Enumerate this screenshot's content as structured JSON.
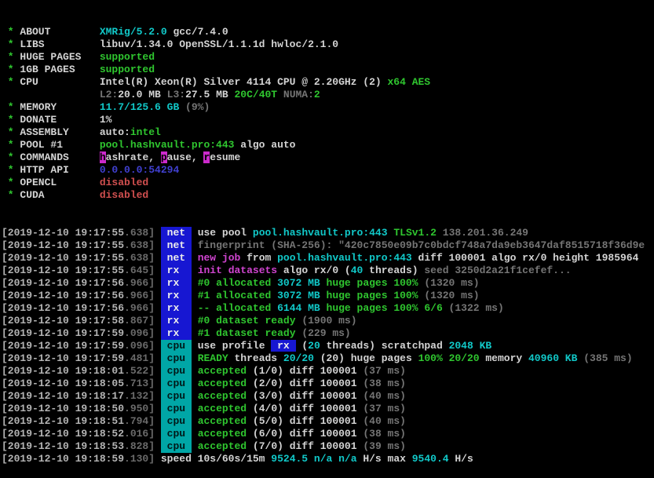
{
  "colors": {
    "background": "#000000",
    "text": "#d4d4d4",
    "green": "#2fc62f",
    "cyan": "#11c9c9",
    "magenta": "#d044d0",
    "red": "#d04f4f",
    "blue": "#4040d0",
    "dim": "#757575",
    "timestamp": "#b4b4b4",
    "timestamp_dim": "#6b6b6b",
    "net_rx_badge_bg": "#1717d2",
    "cpu_badge_bg": "#00a6a6",
    "hotkey_bg": "#cc2acc"
  },
  "terminal": {
    "header": [
      {
        "label": "ABOUT",
        "value": [
          {
            "t": "XMRig/5.2.0",
            "c": "c"
          },
          {
            "t": " gcc/7.4.0",
            "c": "w"
          }
        ]
      },
      {
        "label": "LIBS",
        "value": [
          {
            "t": "libuv/1.34.0 OpenSSL/1.1.1d hwloc/2.1.0",
            "c": "w"
          }
        ]
      },
      {
        "label": "HUGE PAGES",
        "value": [
          {
            "t": "supported",
            "c": "g"
          }
        ]
      },
      {
        "label": "1GB PAGES",
        "value": [
          {
            "t": "supported",
            "c": "g"
          }
        ]
      },
      {
        "label": "CPU",
        "value": [
          {
            "t": "Intel(R) Xeon(R) Silver 4114 CPU @ 2.20GHz (2) ",
            "c": "w"
          },
          {
            "t": "x64 AES",
            "c": "g"
          }
        ]
      },
      {
        "label": null,
        "value": [
          {
            "t": "L2:",
            "c": "d"
          },
          {
            "t": "20.0 MB",
            "c": "w"
          },
          {
            "t": " ",
            "c": "w"
          },
          {
            "t": "L3:",
            "c": "d"
          },
          {
            "t": "27.5 MB",
            "c": "w"
          },
          {
            "t": " ",
            "c": "w"
          },
          {
            "t": "20C/40T",
            "c": "g"
          },
          {
            "t": " ",
            "c": "w"
          },
          {
            "t": "NUMA:",
            "c": "d"
          },
          {
            "t": "2",
            "c": "g"
          }
        ]
      },
      {
        "label": "MEMORY",
        "value": [
          {
            "t": "11.7/125.6 GB ",
            "c": "c"
          },
          {
            "t": "(9%)",
            "c": "d"
          }
        ]
      },
      {
        "label": "DONATE",
        "value": [
          {
            "t": "1%",
            "c": "w"
          }
        ]
      },
      {
        "label": "ASSEMBLY",
        "value": [
          {
            "t": "auto:",
            "c": "w"
          },
          {
            "t": "intel",
            "c": "g"
          }
        ]
      },
      {
        "label": "POOL #1",
        "value": [
          {
            "t": "pool.hashvault.pro:443",
            "c": "g"
          },
          {
            "t": " algo auto",
            "c": "w"
          }
        ]
      },
      {
        "label": "COMMANDS",
        "value": [
          {
            "t": "h",
            "c": "hk"
          },
          {
            "t": "ashrate, ",
            "c": "w"
          },
          {
            "t": "p",
            "c": "hk"
          },
          {
            "t": "ause, ",
            "c": "w"
          },
          {
            "t": "r",
            "c": "hk"
          },
          {
            "t": "esume",
            "c": "w"
          }
        ]
      },
      {
        "label": "HTTP API",
        "value": [
          {
            "t": "0.0.0.0:54294",
            "c": "b"
          }
        ]
      },
      {
        "label": "OPENCL",
        "value": [
          {
            "t": "disabled",
            "c": "r"
          }
        ]
      },
      {
        "label": "CUDA",
        "value": [
          {
            "t": "disabled",
            "c": "r"
          }
        ]
      }
    ],
    "log": [
      {
        "ts": "2019-12-10 19:17:55",
        "ms": "638",
        "tag": "net",
        "msg": [
          {
            "t": "use pool ",
            "c": "w"
          },
          {
            "t": "pool.hashvault.pro:443 ",
            "c": "c"
          },
          {
            "t": "TLSv1.2 ",
            "c": "g"
          },
          {
            "t": "138.201.36.249",
            "c": "d"
          }
        ]
      },
      {
        "ts": "2019-12-10 19:17:55",
        "ms": "638",
        "tag": "net",
        "msg": [
          {
            "t": "fingerprint (SHA-256): \"420c7850e09b7c0bdcf748a7da9eb3647daf8515718f36d9e",
            "c": "d"
          }
        ]
      },
      {
        "ts": "2019-12-10 19:17:55",
        "ms": "638",
        "tag": "net",
        "msg": [
          {
            "t": "new job",
            "c": "m"
          },
          {
            "t": " from ",
            "c": "w"
          },
          {
            "t": "pool.hashvault.pro:443",
            "c": "c"
          },
          {
            "t": " diff 100001 algo rx/0 height 1985964",
            "c": "w"
          }
        ]
      },
      {
        "ts": "2019-12-10 19:17:55",
        "ms": "645",
        "tag": "rx",
        "msg": [
          {
            "t": "init datasets",
            "c": "m"
          },
          {
            "t": " algo rx/0 (",
            "c": "w"
          },
          {
            "t": "40",
            "c": "c"
          },
          {
            "t": " threads) ",
            "c": "w"
          },
          {
            "t": "seed 3250d2a21f1cefef...",
            "c": "d"
          }
        ]
      },
      {
        "ts": "2019-12-10 19:17:56",
        "ms": "966",
        "tag": "rx",
        "msg": [
          {
            "t": "#0 allocated ",
            "c": "g"
          },
          {
            "t": "3072 MB",
            "c": "c"
          },
          {
            "t": " huge pages 100% ",
            "c": "g"
          },
          {
            "t": "(1320 ms)",
            "c": "d"
          }
        ]
      },
      {
        "ts": "2019-12-10 19:17:56",
        "ms": "966",
        "tag": "rx",
        "msg": [
          {
            "t": "#1 allocated ",
            "c": "g"
          },
          {
            "t": "3072 MB",
            "c": "c"
          },
          {
            "t": " huge pages 100% ",
            "c": "g"
          },
          {
            "t": "(1320 ms)",
            "c": "d"
          }
        ]
      },
      {
        "ts": "2019-12-10 19:17:56",
        "ms": "966",
        "tag": "rx",
        "msg": [
          {
            "t": "-- allocated ",
            "c": "g"
          },
          {
            "t": "6144 MB",
            "c": "c"
          },
          {
            "t": " huge pages 100% 6/6 ",
            "c": "g"
          },
          {
            "t": "(1322 ms)",
            "c": "d"
          }
        ]
      },
      {
        "ts": "2019-12-10 19:17:58",
        "ms": "867",
        "tag": "rx",
        "msg": [
          {
            "t": "#0 dataset ready ",
            "c": "g"
          },
          {
            "t": "(1900 ms)",
            "c": "d"
          }
        ]
      },
      {
        "ts": "2019-12-10 19:17:59",
        "ms": "096",
        "tag": "rx",
        "msg": [
          {
            "t": "#1 dataset ready ",
            "c": "g"
          },
          {
            "t": "(229 ms)",
            "c": "d"
          }
        ]
      },
      {
        "ts": "2019-12-10 19:17:59",
        "ms": "096",
        "tag": "cpu",
        "msg": [
          {
            "t": "use profile ",
            "c": "w"
          },
          {
            "t": " rx ",
            "c": "brx",
            "n": "rx-profile-badge"
          },
          {
            "t": " (",
            "c": "w"
          },
          {
            "t": "20",
            "c": "c"
          },
          {
            "t": " threads) scratchpad ",
            "c": "w"
          },
          {
            "t": "2048 KB",
            "c": "c"
          }
        ]
      },
      {
        "ts": "2019-12-10 19:17:59",
        "ms": "481",
        "tag": "cpu",
        "msg": [
          {
            "t": "READY",
            "c": "g"
          },
          {
            "t": " threads ",
            "c": "w"
          },
          {
            "t": "20/20",
            "c": "c"
          },
          {
            "t": " (20) huge pages ",
            "c": "w"
          },
          {
            "t": "100% 20/20",
            "c": "g"
          },
          {
            "t": " memory ",
            "c": "w"
          },
          {
            "t": "40960 KB ",
            "c": "c"
          },
          {
            "t": "(385 ms)",
            "c": "d"
          }
        ]
      },
      {
        "ts": "2019-12-10 19:18:01",
        "ms": "522",
        "tag": "cpu",
        "msg": [
          {
            "t": "accepted",
            "c": "g"
          },
          {
            "t": " (1/0) diff 100001 ",
            "c": "w"
          },
          {
            "t": "(37 ms)",
            "c": "d"
          }
        ]
      },
      {
        "ts": "2019-12-10 19:18:05",
        "ms": "713",
        "tag": "cpu",
        "msg": [
          {
            "t": "accepted",
            "c": "g"
          },
          {
            "t": " (2/0) diff 100001 ",
            "c": "w"
          },
          {
            "t": "(38 ms)",
            "c": "d"
          }
        ]
      },
      {
        "ts": "2019-12-10 19:18:17",
        "ms": "132",
        "tag": "cpu",
        "msg": [
          {
            "t": "accepted",
            "c": "g"
          },
          {
            "t": " (3/0) diff 100001 ",
            "c": "w"
          },
          {
            "t": "(40 ms)",
            "c": "d"
          }
        ]
      },
      {
        "ts": "2019-12-10 19:18:50",
        "ms": "950",
        "tag": "cpu",
        "msg": [
          {
            "t": "accepted",
            "c": "g"
          },
          {
            "t": " (4/0) diff 100001 ",
            "c": "w"
          },
          {
            "t": "(37 ms)",
            "c": "d"
          }
        ]
      },
      {
        "ts": "2019-12-10 19:18:51",
        "ms": "794",
        "tag": "cpu",
        "msg": [
          {
            "t": "accepted",
            "c": "g"
          },
          {
            "t": " (5/0) diff 100001 ",
            "c": "w"
          },
          {
            "t": "(40 ms)",
            "c": "d"
          }
        ]
      },
      {
        "ts": "2019-12-10 19:18:52",
        "ms": "016",
        "tag": "cpu",
        "msg": [
          {
            "t": "accepted",
            "c": "g"
          },
          {
            "t": " (6/0) diff 100001 ",
            "c": "w"
          },
          {
            "t": "(38 ms)",
            "c": "d"
          }
        ]
      },
      {
        "ts": "2019-12-10 19:18:53",
        "ms": "828",
        "tag": "cpu",
        "msg": [
          {
            "t": "accepted",
            "c": "g"
          },
          {
            "t": " (7/0) diff 100001 ",
            "c": "w"
          },
          {
            "t": "(39 ms)",
            "c": "d"
          }
        ]
      },
      {
        "ts": "2019-12-10 19:18:59",
        "ms": "130",
        "tag": null,
        "msg": [
          {
            "t": "speed 10s/60s/15m ",
            "c": "w"
          },
          {
            "t": "9524.5",
            "c": "c"
          },
          {
            "t": " ",
            "c": "w"
          },
          {
            "t": "n/a n/a",
            "c": "c"
          },
          {
            "t": " H/s max ",
            "c": "w"
          },
          {
            "t": "9540.4",
            "c": "c"
          },
          {
            "t": " H/s",
            "c": "w"
          }
        ]
      }
    ]
  }
}
